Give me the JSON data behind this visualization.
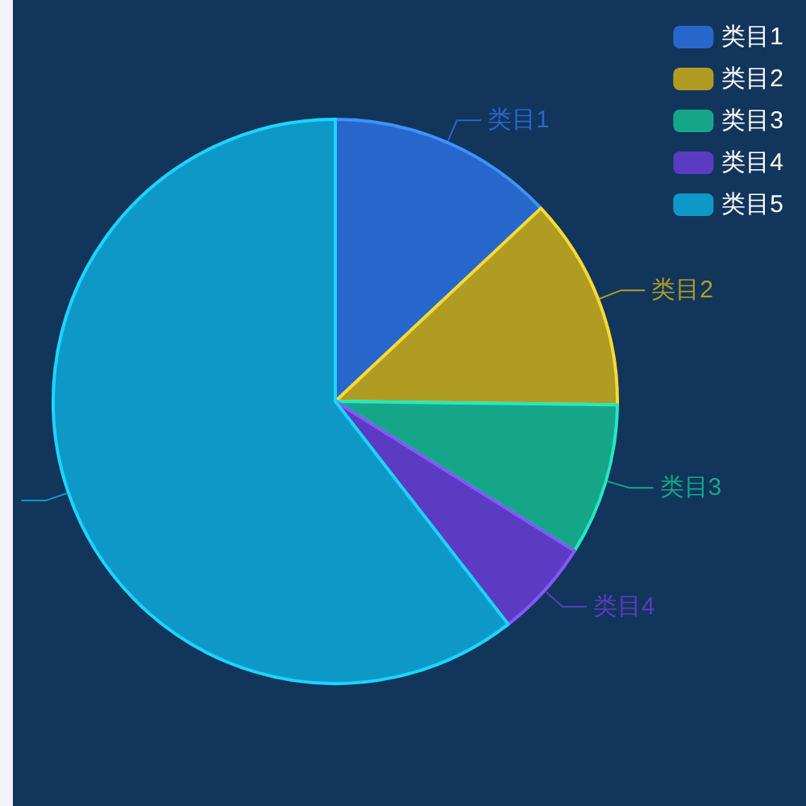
{
  "chart_data": {
    "type": "pie",
    "categories": [
      "类目1",
      "类目2",
      "类目3",
      "类目4",
      "类目5"
    ],
    "values": [
      13.0,
      12.2,
      8.7,
      5.6,
      60.5
    ],
    "colors": [
      "#2767cc",
      "#b09c22",
      "#15a68a",
      "#5b3bc2",
      "#0e98c8"
    ],
    "legend": "top right"
  }
}
